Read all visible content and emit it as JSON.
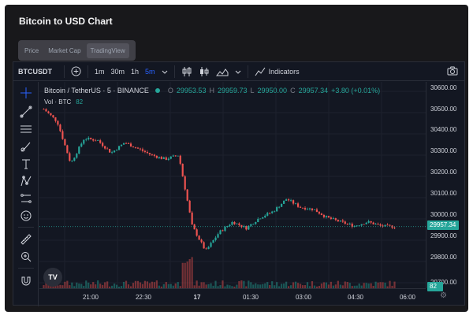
{
  "page": {
    "title": "Bitcoin to USD Chart"
  },
  "tabs": [
    {
      "label": "Price",
      "active": false
    },
    {
      "label": "Market Cap",
      "active": false
    },
    {
      "label": "TradingView",
      "active": true
    }
  ],
  "toolbar": {
    "symbol": "BTCUSDT",
    "intervals": [
      "1m",
      "30m",
      "1h",
      "5m"
    ],
    "active_interval": "5m",
    "indicators_label": "Indicators"
  },
  "legend": {
    "symbol": "Bitcoin / TetherUS · 5 · BINANCE",
    "o_label": "O",
    "o": "29953.53",
    "h_label": "H",
    "h": "29959.73",
    "l_label": "L",
    "l": "29950.00",
    "c_label": "C",
    "c": "29957.34",
    "change": "+3.80 (+0.01%)",
    "vol_label": "Vol · BTC",
    "vol_value": "82"
  },
  "price_axis": {
    "labels": [
      "30600.00",
      "30500.00",
      "30400.00",
      "30300.00",
      "30200.00",
      "30100.00",
      "30000.00",
      "29900.00",
      "29800.00",
      "29700.00"
    ],
    "last_price": "29957.34",
    "last_volume": "82"
  },
  "time_axis": {
    "labels": [
      "21:00",
      "22:30",
      "17",
      "01:30",
      "03:00",
      "04:30",
      "06:00"
    ]
  },
  "logo_text": "TV",
  "colors": {
    "up": "#26a69a",
    "down": "#ef5350",
    "background": "#131722",
    "grid": "#1e222d"
  },
  "chart_data": {
    "type": "candlestick",
    "y_range": [
      29700,
      30620
    ],
    "x": [
      "19:50",
      "20:20",
      "20:50",
      "21:20",
      "21:50",
      "22:20",
      "22:50",
      "23:20",
      "23:50",
      "00:10",
      "00:20",
      "00:35",
      "00:50",
      "01:10",
      "01:30",
      "01:50",
      "02:10",
      "02:30",
      "02:50",
      "03:10",
      "03:30",
      "03:50",
      "04:10",
      "04:30",
      "04:50",
      "05:10",
      "05:30"
    ],
    "close": [
      30520,
      30460,
      30260,
      30380,
      30370,
      30310,
      30360,
      30330,
      30300,
      30280,
      30300,
      29960,
      29840,
      29930,
      29980,
      29950,
      30000,
      30030,
      30090,
      30050,
      30040,
      30000,
      29980,
      29960,
      29980,
      29960,
      29957
    ]
  }
}
